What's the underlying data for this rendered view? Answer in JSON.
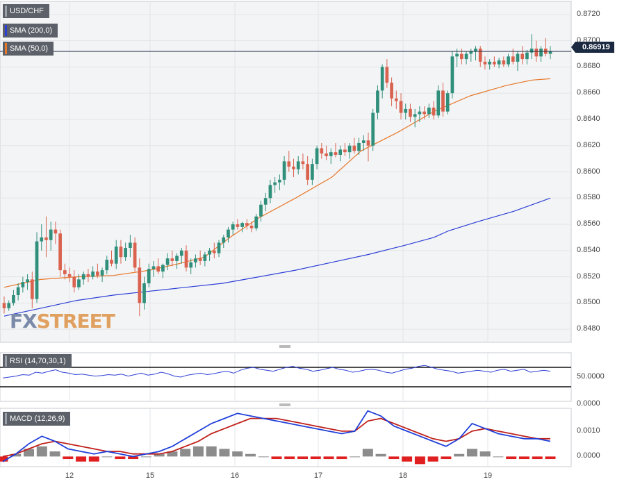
{
  "chart_data": [
    {
      "type": "candlestick",
      "title": "USD/CHF",
      "legend": [
        "SMA (200,0)",
        "SMA (50,0)"
      ],
      "legend_colors": [
        "#2c3fd6",
        "#e8782a"
      ],
      "last_price": "0.86919",
      "y_ticks": [
        "0.8720",
        "0.8700",
        "0.8680",
        "0.8660",
        "0.8640",
        "0.8620",
        "0.8600",
        "0.8580",
        "0.8560",
        "0.8540",
        "0.8520",
        "0.8500",
        "0.8480"
      ],
      "ylim": [
        0.847,
        0.873
      ],
      "x_ticks": [
        "12",
        "15",
        "16",
        "17",
        "18",
        "19"
      ],
      "candles": [
        [
          0.85,
          0.8505,
          0.8492,
          0.8496
        ],
        [
          0.8496,
          0.8502,
          0.8494,
          0.85
        ],
        [
          0.85,
          0.851,
          0.8498,
          0.8506
        ],
        [
          0.8506,
          0.8515,
          0.8502,
          0.8512
        ],
        [
          0.8512,
          0.852,
          0.8508,
          0.8516
        ],
        [
          0.8516,
          0.8522,
          0.851,
          0.8518
        ],
        [
          0.8518,
          0.8524,
          0.8496,
          0.8503
        ],
        [
          0.8503,
          0.8554,
          0.85,
          0.8547
        ],
        [
          0.8547,
          0.856,
          0.854,
          0.855
        ],
        [
          0.855,
          0.8566,
          0.8535,
          0.8548
        ],
        [
          0.8548,
          0.8562,
          0.854,
          0.8556
        ],
        [
          0.8556,
          0.8562,
          0.8545,
          0.8553
        ],
        [
          0.8553,
          0.8556,
          0.852,
          0.8525
        ],
        [
          0.8525,
          0.853,
          0.8518,
          0.8522
        ],
        [
          0.8522,
          0.8527,
          0.8516,
          0.852
        ],
        [
          0.852,
          0.8525,
          0.8508,
          0.8512
        ],
        [
          0.8512,
          0.8522,
          0.851,
          0.8518
        ],
        [
          0.8518,
          0.8524,
          0.8514,
          0.8522
        ],
        [
          0.8522,
          0.8526,
          0.8516,
          0.852
        ],
        [
          0.852,
          0.8528,
          0.8518,
          0.8524
        ],
        [
          0.8524,
          0.853,
          0.8519,
          0.8521
        ],
        [
          0.8521,
          0.8527,
          0.8516,
          0.8525
        ],
        [
          0.8525,
          0.8536,
          0.8522,
          0.8533
        ],
        [
          0.8533,
          0.854,
          0.8528,
          0.853
        ],
        [
          0.853,
          0.8548,
          0.8526,
          0.8543
        ],
        [
          0.8543,
          0.8548,
          0.853,
          0.8535
        ],
        [
          0.8535,
          0.8546,
          0.8532,
          0.8542
        ],
        [
          0.8542,
          0.8552,
          0.8535,
          0.8546
        ],
        [
          0.8546,
          0.855,
          0.8524,
          0.8527
        ],
        [
          0.8527,
          0.8534,
          0.849,
          0.85
        ],
        [
          0.85,
          0.852,
          0.8495,
          0.8515
        ],
        [
          0.8515,
          0.853,
          0.8512,
          0.8526
        ],
        [
          0.8526,
          0.8532,
          0.852,
          0.8528
        ],
        [
          0.8528,
          0.8534,
          0.8522,
          0.8524
        ],
        [
          0.8524,
          0.853,
          0.8519,
          0.8529
        ],
        [
          0.8529,
          0.8538,
          0.8525,
          0.8534
        ],
        [
          0.8534,
          0.854,
          0.8528,
          0.8532
        ],
        [
          0.8532,
          0.8538,
          0.8526,
          0.8536
        ],
        [
          0.8536,
          0.8542,
          0.853,
          0.854
        ],
        [
          0.854,
          0.8544,
          0.8524,
          0.8527
        ],
        [
          0.8527,
          0.8534,
          0.8522,
          0.8531
        ],
        [
          0.8531,
          0.8537,
          0.8527,
          0.8534
        ],
        [
          0.8534,
          0.854,
          0.8529,
          0.8532
        ],
        [
          0.8532,
          0.8539,
          0.8528,
          0.8537
        ],
        [
          0.8537,
          0.8542,
          0.8532,
          0.854
        ],
        [
          0.854,
          0.8546,
          0.8534,
          0.8538
        ],
        [
          0.8538,
          0.8548,
          0.8535,
          0.8546
        ],
        [
          0.8546,
          0.8552,
          0.8542,
          0.855
        ],
        [
          0.855,
          0.8558,
          0.8546,
          0.8556
        ],
        [
          0.8556,
          0.8562,
          0.8552,
          0.856
        ],
        [
          0.856,
          0.8564,
          0.8556,
          0.8558
        ],
        [
          0.8558,
          0.8562,
          0.8554,
          0.8561
        ],
        [
          0.8561,
          0.8564,
          0.8556,
          0.8559
        ],
        [
          0.8559,
          0.8562,
          0.8554,
          0.8557
        ],
        [
          0.8557,
          0.8568,
          0.8555,
          0.8566
        ],
        [
          0.8566,
          0.8578,
          0.8562,
          0.8575
        ],
        [
          0.8575,
          0.8584,
          0.857,
          0.858
        ],
        [
          0.858,
          0.8594,
          0.8576,
          0.859
        ],
        [
          0.859,
          0.8596,
          0.8584,
          0.8592
        ],
        [
          0.8592,
          0.8598,
          0.8586,
          0.8594
        ],
        [
          0.8594,
          0.8612,
          0.859,
          0.8608
        ],
        [
          0.8608,
          0.8616,
          0.86,
          0.8604
        ],
        [
          0.8604,
          0.861,
          0.8596,
          0.8602
        ],
        [
          0.8602,
          0.8612,
          0.8598,
          0.8608
        ],
        [
          0.8608,
          0.8614,
          0.8602,
          0.8606
        ],
        [
          0.8606,
          0.8612,
          0.859,
          0.8594
        ],
        [
          0.8594,
          0.861,
          0.859,
          0.8606
        ],
        [
          0.8606,
          0.862,
          0.8602,
          0.8618
        ],
        [
          0.8618,
          0.8622,
          0.861,
          0.8614
        ],
        [
          0.8614,
          0.862,
          0.8609,
          0.8612
        ],
        [
          0.8612,
          0.8618,
          0.8606,
          0.8615
        ],
        [
          0.8615,
          0.8622,
          0.8611,
          0.8613
        ],
        [
          0.8613,
          0.862,
          0.8608,
          0.8617
        ],
        [
          0.8617,
          0.8622,
          0.8612,
          0.8615
        ],
        [
          0.8615,
          0.8622,
          0.861,
          0.862
        ],
        [
          0.862,
          0.8626,
          0.8614,
          0.8616
        ],
        [
          0.8616,
          0.8626,
          0.8613,
          0.8622
        ],
        [
          0.8622,
          0.8628,
          0.8616,
          0.8624
        ],
        [
          0.8624,
          0.863,
          0.8608,
          0.862
        ],
        [
          0.862,
          0.8648,
          0.8616,
          0.8645
        ],
        [
          0.8645,
          0.8666,
          0.864,
          0.8662
        ],
        [
          0.8662,
          0.8682,
          0.8656,
          0.868
        ],
        [
          0.868,
          0.8686,
          0.8664,
          0.8668
        ],
        [
          0.8668,
          0.8672,
          0.865,
          0.8656
        ],
        [
          0.8656,
          0.8662,
          0.8648,
          0.8654
        ],
        [
          0.8654,
          0.866,
          0.864,
          0.8645
        ],
        [
          0.8645,
          0.8652,
          0.864,
          0.8648
        ],
        [
          0.8648,
          0.8652,
          0.8638,
          0.8642
        ],
        [
          0.8642,
          0.8648,
          0.8634,
          0.8644
        ],
        [
          0.8644,
          0.865,
          0.8638,
          0.8646
        ],
        [
          0.8646,
          0.865,
          0.864,
          0.8644
        ],
        [
          0.8644,
          0.8652,
          0.8641,
          0.8649
        ],
        [
          0.8649,
          0.8654,
          0.864,
          0.8643
        ],
        [
          0.8643,
          0.8666,
          0.8641,
          0.8662
        ],
        [
          0.8662,
          0.8668,
          0.8642,
          0.8646
        ],
        [
          0.8646,
          0.8662,
          0.8644,
          0.866
        ],
        [
          0.866,
          0.8692,
          0.8656,
          0.8688
        ],
        [
          0.8688,
          0.8694,
          0.868,
          0.869
        ],
        [
          0.869,
          0.8694,
          0.8682,
          0.8686
        ],
        [
          0.8686,
          0.8692,
          0.8682,
          0.869
        ],
        [
          0.869,
          0.8694,
          0.8684,
          0.8692
        ],
        [
          0.8692,
          0.8696,
          0.8685,
          0.8694
        ],
        [
          0.8694,
          0.8696,
          0.868,
          0.8684
        ],
        [
          0.8684,
          0.8688,
          0.8678,
          0.8682
        ],
        [
          0.8682,
          0.8686,
          0.8678,
          0.8684
        ],
        [
          0.8684,
          0.8688,
          0.868,
          0.8682
        ],
        [
          0.8682,
          0.8687,
          0.8679,
          0.8685
        ],
        [
          0.8685,
          0.8688,
          0.868,
          0.8682
        ],
        [
          0.8682,
          0.869,
          0.868,
          0.8688
        ],
        [
          0.8688,
          0.8694,
          0.8682,
          0.8684
        ],
        [
          0.8684,
          0.8692,
          0.8677,
          0.869
        ],
        [
          0.869,
          0.8696,
          0.8682,
          0.8686
        ],
        [
          0.8686,
          0.8693,
          0.8682,
          0.8691
        ],
        [
          0.8691,
          0.8705,
          0.8686,
          0.8694
        ],
        [
          0.8694,
          0.87,
          0.8684,
          0.8688
        ],
        [
          0.8688,
          0.8696,
          0.8684,
          0.8694
        ],
        [
          0.8694,
          0.8702,
          0.8688,
          0.869
        ],
        [
          0.869,
          0.8696,
          0.8686,
          0.8692
        ]
      ],
      "sma200": [
        [
          0,
          0.849
        ],
        [
          10,
          0.8496
        ],
        [
          20,
          0.8502
        ],
        [
          30,
          0.8506
        ],
        [
          40,
          0.8509
        ],
        [
          50,
          0.8512
        ],
        [
          60,
          0.8515
        ],
        [
          70,
          0.852
        ],
        [
          80,
          0.8525
        ],
        [
          90,
          0.8531
        ],
        [
          100,
          0.8537
        ],
        [
          110,
          0.8544
        ],
        [
          118,
          0.855
        ],
        [
          122,
          0.8555
        ],
        [
          130,
          0.8562
        ],
        [
          140,
          0.857
        ],
        [
          150,
          0.858
        ]
      ],
      "sma50": [
        [
          0,
          0.8512
        ],
        [
          10,
          0.8518
        ],
        [
          20,
          0.852
        ],
        [
          30,
          0.8521
        ],
        [
          40,
          0.8525
        ],
        [
          48,
          0.853
        ],
        [
          55,
          0.8535
        ],
        [
          62,
          0.855
        ],
        [
          70,
          0.8565
        ],
        [
          80,
          0.858
        ],
        [
          90,
          0.8596
        ],
        [
          98,
          0.8616
        ],
        [
          108,
          0.863
        ],
        [
          118,
          0.8646
        ],
        [
          128,
          0.8658
        ],
        [
          138,
          0.8666
        ],
        [
          145,
          0.867
        ],
        [
          150,
          0.8671
        ]
      ]
    },
    {
      "type": "line",
      "title": "RSI (14,70,30,1)",
      "y_ticks": [
        "50.0000",
        "0.0000"
      ],
      "levels": [
        70,
        30
      ],
      "ylim": [
        0,
        100
      ],
      "values": [
        48,
        50,
        52,
        55,
        54,
        60,
        58,
        62,
        65,
        60,
        58,
        55,
        56,
        54,
        52,
        53,
        55,
        54,
        56,
        52,
        55,
        58,
        54,
        56,
        60,
        57,
        52,
        50,
        54,
        56,
        58,
        55,
        57,
        60,
        62,
        58,
        64,
        68,
        70,
        66,
        64,
        62,
        66,
        70,
        72,
        68,
        66,
        62,
        64,
        67,
        70,
        66,
        64,
        60,
        62,
        65,
        66,
        64,
        60,
        58,
        62,
        66,
        68,
        72,
        74,
        70,
        66,
        64,
        62,
        58,
        60,
        62,
        64,
        62,
        60,
        64,
        66,
        62,
        64,
        66,
        60,
        62,
        64,
        62
      ]
    },
    {
      "type": "macd",
      "title": "MACD (12,26,9)",
      "y_ticks": [
        "0.0010",
        "0.0000"
      ],
      "ylim": [
        -0.0004,
        0.0019
      ],
      "macd": [
        -0.0002,
        0.0001,
        0.0005,
        0.0008,
        0.0006,
        0.0003,
        0.0002,
        0.0001,
        0.0002,
        0.0001,
        0.0,
        0.0001,
        0.0002,
        0.0004,
        0.0007,
        0.001,
        0.0013,
        0.0015,
        0.0017,
        0.0016,
        0.0015,
        0.0014,
        0.0013,
        0.0012,
        0.0011,
        0.001,
        0.0009,
        0.001,
        0.0018,
        0.0016,
        0.0012,
        0.001,
        0.0008,
        0.0006,
        0.0004,
        0.0007,
        0.0013,
        0.0011,
        0.0009,
        0.0008,
        0.0007,
        0.0007,
        0.0006
      ],
      "signal": [
        0.0,
        0.0001,
        0.0003,
        0.0005,
        0.0006,
        0.0005,
        0.0004,
        0.0003,
        0.0002,
        0.0002,
        0.0001,
        0.0001,
        0.0001,
        0.0002,
        0.0004,
        0.0006,
        0.0009,
        0.0011,
        0.0013,
        0.0015,
        0.0015,
        0.0015,
        0.0014,
        0.0013,
        0.0012,
        0.0011,
        0.001,
        0.001,
        0.0014,
        0.0015,
        0.0013,
        0.0011,
        0.0009,
        0.0007,
        0.0006,
        0.0007,
        0.001,
        0.0011,
        0.001,
        0.0009,
        0.0008,
        0.0007,
        0.0007
      ],
      "histogram": [
        -0.0002,
        0.0001,
        0.0003,
        0.0004,
        0.0002,
        -0.0001,
        -0.0002,
        -0.0002,
        0.0,
        -0.0001,
        -0.0001,
        0.0,
        0.0001,
        0.0002,
        0.0003,
        0.0004,
        0.0004,
        0.0003,
        0.0002,
        0.0001,
        0.0,
        -0.0001,
        -0.0001,
        -0.0001,
        -0.0001,
        -0.0001,
        -0.0001,
        0.0,
        0.0003,
        0.0001,
        -0.0001,
        -0.0002,
        -0.0003,
        -0.0002,
        -0.0001,
        0.0001,
        0.0003,
        0.0002,
        0.0,
        -0.0001,
        -0.0001,
        -0.0001,
        -0.0001
      ]
    }
  ]
}
